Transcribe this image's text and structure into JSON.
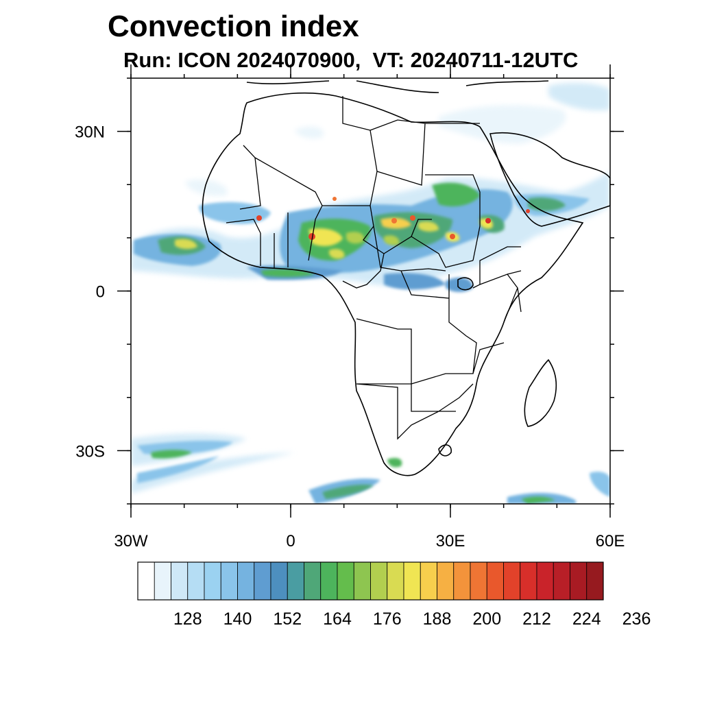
{
  "title": "Convection index",
  "subtitle": "Run: ICON 2024070900,  VT: 20240711-12UTC",
  "map": {
    "lon_range": [
      -30,
      60
    ],
    "lat_range": [
      -40,
      40
    ],
    "x_ticks": [
      {
        "value": -30,
        "label": "30W"
      },
      {
        "value": 0,
        "label": "0"
      },
      {
        "value": 30,
        "label": "30E"
      },
      {
        "value": 60,
        "label": "60E"
      }
    ],
    "y_ticks": [
      {
        "value": 30,
        "label": "30N"
      },
      {
        "value": 0,
        "label": "0"
      },
      {
        "value": -30,
        "label": "30S"
      }
    ],
    "minor_tick_spacing_deg": 10
  },
  "colorbar": {
    "colors": [
      "#ffffff",
      "#e8f4fb",
      "#cfe8f7",
      "#b5ddf4",
      "#9bd2f1",
      "#8ac4ea",
      "#75b3e0",
      "#5f9dd1",
      "#4d8fbf",
      "#4a9da2",
      "#4fa778",
      "#4db45c",
      "#64bd4c",
      "#8ec550",
      "#b2cf4f",
      "#d9db52",
      "#f0e553",
      "#f7cf4d",
      "#f6b043",
      "#f3933b",
      "#ef7534",
      "#e9582c",
      "#e2422a",
      "#d82f2a",
      "#c9232a",
      "#b81f27",
      "#a81b23",
      "#961a1f"
    ],
    "labels": [
      "128",
      "140",
      "152",
      "164",
      "176",
      "188",
      "200",
      "212",
      "224",
      "236"
    ]
  }
}
